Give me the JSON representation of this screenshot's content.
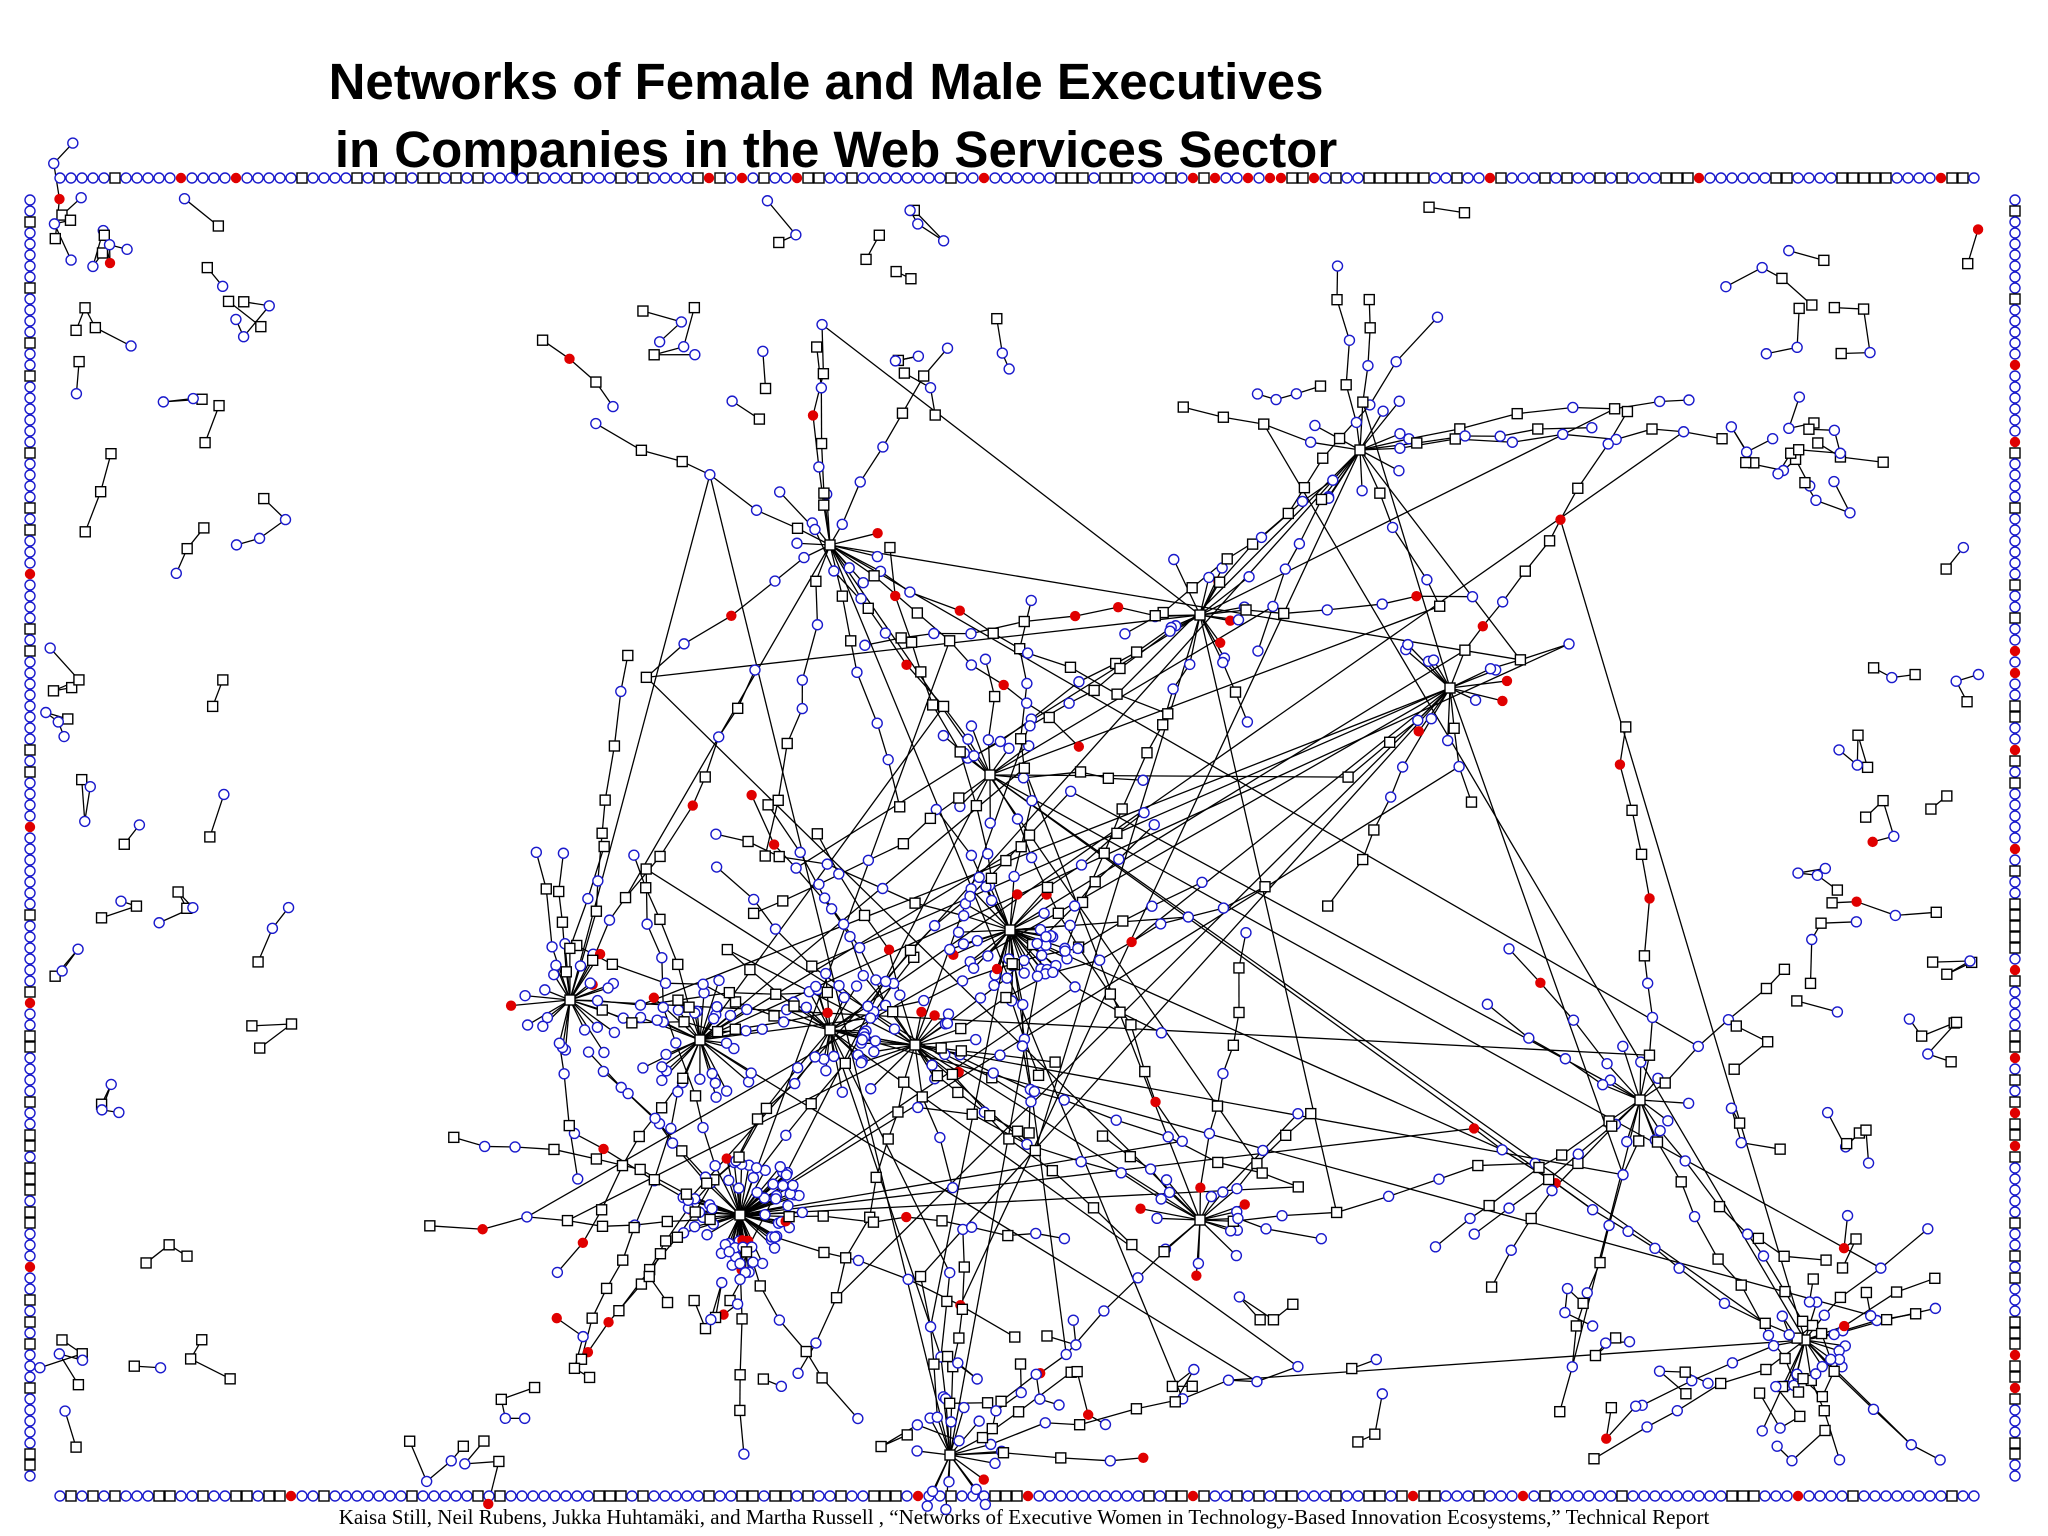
{
  "slide": {
    "title_line_1": "Networks of Female and Male Executives",
    "title_line_2": "in Companies in the Web Services Sector",
    "citation": "Kaisa Still,  Neil Rubens, Jukka Huhtamäki, and Martha Russell , “Networks of Executive Women  in Technology-Based Innovation Ecosystems,” Technical Report"
  },
  "network": {
    "node_types": [
      {
        "kind": "company",
        "shape": "square",
        "stroke": "#000000",
        "fill": "#ffffff"
      },
      {
        "kind": "male-executive",
        "shape": "circle",
        "stroke": "#1a1acc",
        "fill": "#ffffff"
      },
      {
        "kind": "female-executive",
        "shape": "circle",
        "stroke": "#e00000",
        "fill": "#e00000"
      }
    ],
    "edge_color": "#000000"
  }
}
